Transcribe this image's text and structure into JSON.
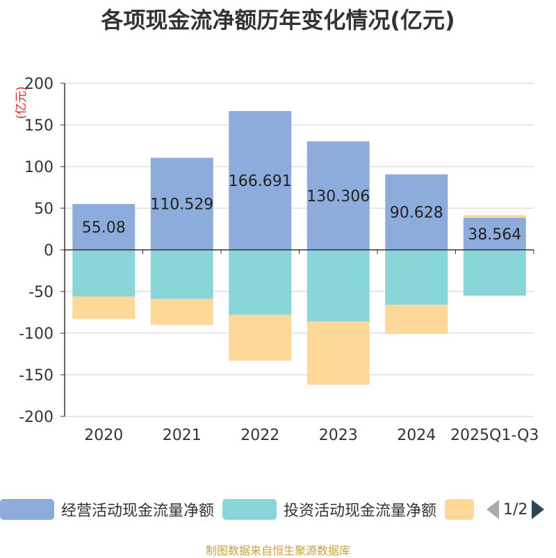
{
  "title": "各项现金流净额历年变化情况(亿元)",
  "footer": "制图数据来自恒生聚源数据库",
  "legend": {
    "items": [
      {
        "name": "经营活动现金流量净额",
        "color": "#8eacdb"
      },
      {
        "name": "投资活动现金流量净额",
        "color": "#88d6d8"
      },
      {
        "name": "",
        "color": "#fdd898"
      }
    ],
    "page": "1/2"
  },
  "chart_data": {
    "type": "bar",
    "stacked": true,
    "categories": [
      "2020",
      "2021",
      "2022",
      "2023",
      "2024",
      "2025Q1-Q3"
    ],
    "ylabel": "(亿元)",
    "ylim": [
      -200,
      200
    ],
    "yticks": [
      200,
      150,
      100,
      50,
      0,
      -50,
      -100,
      -150,
      -200
    ],
    "grid": true,
    "series": [
      {
        "name": "经营活动现金流量净额",
        "color": "#8eacdb",
        "values": [
          55.08,
          110.529,
          166.691,
          130.306,
          90.628,
          38.564
        ],
        "labels": [
          "55.08",
          "110.529",
          "166.691",
          "130.306",
          "90.628",
          "38.564"
        ]
      },
      {
        "name": "投资活动现金流量净额",
        "color": "#88d6d8",
        "values": [
          -56,
          -59,
          -78,
          -86,
          -66,
          -55
        ]
      },
      {
        "name": "",
        "color": "#fdd898",
        "values": [
          -27,
          -31,
          -55,
          -76,
          -35,
          3
        ]
      }
    ]
  }
}
